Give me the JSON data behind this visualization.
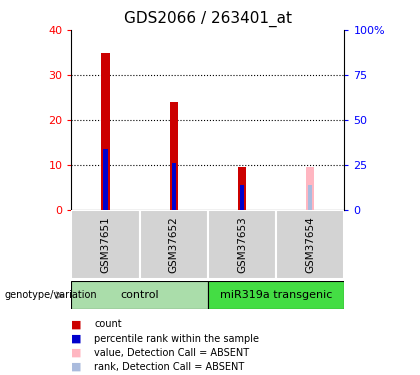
{
  "title": "GDS2066 / 263401_at",
  "samples": [
    "GSM37651",
    "GSM37652",
    "GSM37653",
    "GSM37654"
  ],
  "group_labels": [
    "control",
    "miR319a transgenic"
  ],
  "red_bars": [
    35.0,
    24.0,
    9.5,
    0.0
  ],
  "blue_bars": [
    13.5,
    10.5,
    5.5,
    0.0
  ],
  "pink_bars": [
    0.0,
    0.0,
    0.0,
    9.5
  ],
  "lightblue_bars": [
    0.0,
    0.0,
    0.0,
    5.5
  ],
  "ylim": [
    0,
    40
  ],
  "yticks_left": [
    0,
    10,
    20,
    30,
    40
  ],
  "yticks_right": [
    0,
    25,
    50,
    75,
    100
  ],
  "y2labels": [
    "0",
    "25",
    "50",
    "75",
    "100%"
  ],
  "bar_width": 0.12,
  "bar_color_red": "#CC0000",
  "bar_color_blue": "#0000CC",
  "bar_color_pink": "#FFB6C1",
  "bar_color_lightblue": "#AABBDD",
  "bg_color_label": "#D3D3D3",
  "bg_color_group_control": "#AADDAA",
  "bg_color_group_transgenic": "#44DD44",
  "legend_items": [
    "count",
    "percentile rank within the sample",
    "value, Detection Call = ABSENT",
    "rank, Detection Call = ABSENT"
  ],
  "legend_colors": [
    "#CC0000",
    "#0000CC",
    "#FFB6C1",
    "#AABBDD"
  ]
}
